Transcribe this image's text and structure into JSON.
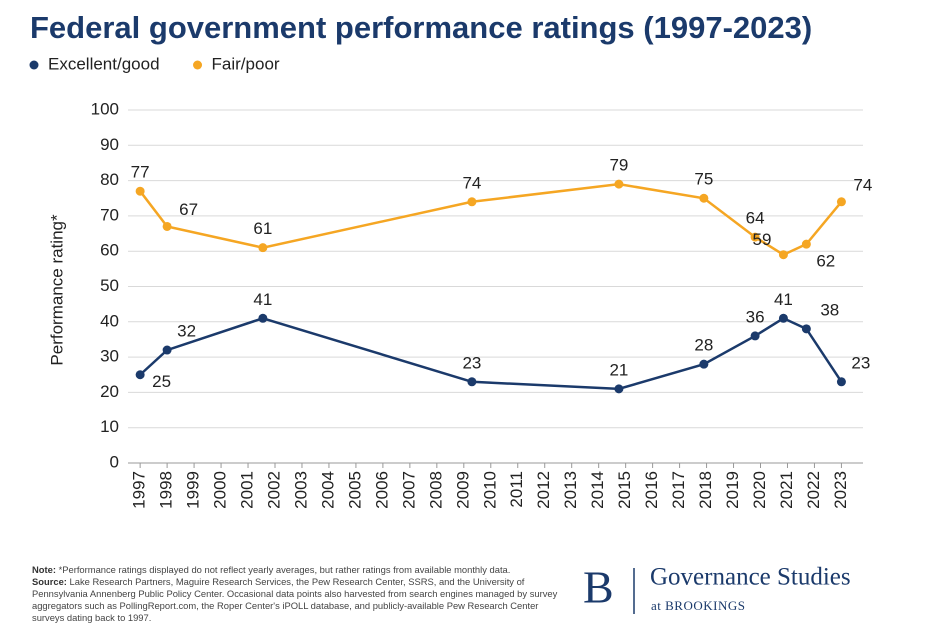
{
  "chart_data": {
    "type": "line",
    "title": "Federal government performance ratings (1997-2023)",
    "y_label": "Performance rating*",
    "x": [
      1997,
      1998,
      2001.55,
      2009.3,
      2014.75,
      2017.9,
      2019.8,
      2020.85,
      2021.7,
      2023
    ],
    "series": [
      {
        "name": "Excellent/good",
        "color": "#1b3a6b",
        "values": [
          25,
          32,
          41,
          23,
          21,
          28,
          36,
          41,
          38,
          23
        ]
      },
      {
        "name": "Fair/poor",
        "color": "#f5a623",
        "values": [
          77,
          67,
          61,
          74,
          79,
          75,
          64,
          59,
          62,
          74
        ]
      }
    ],
    "xlim": [
      1996.55,
      2023.8
    ],
    "xticks": [
      1997,
      1998,
      1999,
      2000,
      2001,
      2002,
      2003,
      2004,
      2005,
      2006,
      2007,
      2008,
      2009,
      2010,
      2011,
      2012,
      2013,
      2014,
      2015,
      2016,
      2017,
      2018,
      2019,
      2020,
      2021,
      2022,
      2023
    ],
    "ylim": [
      0,
      100
    ],
    "yticks": [
      0,
      10,
      20,
      30,
      40,
      50,
      60,
      70,
      80,
      90,
      100
    ],
    "grid": true,
    "legend": "top-left"
  },
  "footer": {
    "note_label": "Note:",
    "note": "*Performance ratings displayed do not reflect yearly averages, but rather ratings from available monthly data.",
    "source_label": "Source:",
    "source": "Lake Research Partners, Maguire Research Services, the Pew Research Center, SSRS, and the University of Pennsylvania Annenberg Public Policy Center. Occasional data points also harvested from search engines managed by survey aggregators such as PollingReport.com, the Roper Center's iPOLL database, and publicly-available Pew Research Center surveys dating back to 1997.",
    "logo_letter": "B",
    "logo_title": "Governance Studies",
    "logo_sub": "at BROOKINGS"
  }
}
